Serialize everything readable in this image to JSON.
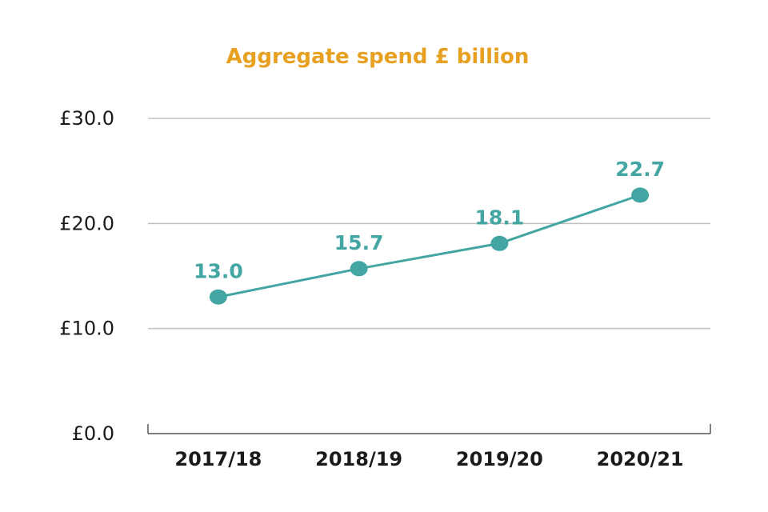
{
  "colors": {
    "title": "#E8A020",
    "series": "#43A6A2",
    "grid": "#BFBFBF",
    "axis": "#555555"
  },
  "chart_data": {
    "type": "line",
    "title": "Aggregate spend £ billion",
    "xlabel": "",
    "ylabel": "",
    "categories": [
      "2017/18",
      "2018/19",
      "2019/20",
      "2020/21"
    ],
    "series": [
      {
        "name": "Aggregate spend",
        "values": [
          13.0,
          15.7,
          18.1,
          22.7
        ],
        "labels": [
          "13.0",
          "15.7",
          "18.1",
          "22.7"
        ]
      }
    ],
    "ylim": [
      0,
      30
    ],
    "yticks": [
      0,
      10,
      20,
      30
    ],
    "ytick_labels": [
      "£0.0",
      "£10.0",
      "£20.0",
      "£30.0"
    ],
    "grid": true
  }
}
